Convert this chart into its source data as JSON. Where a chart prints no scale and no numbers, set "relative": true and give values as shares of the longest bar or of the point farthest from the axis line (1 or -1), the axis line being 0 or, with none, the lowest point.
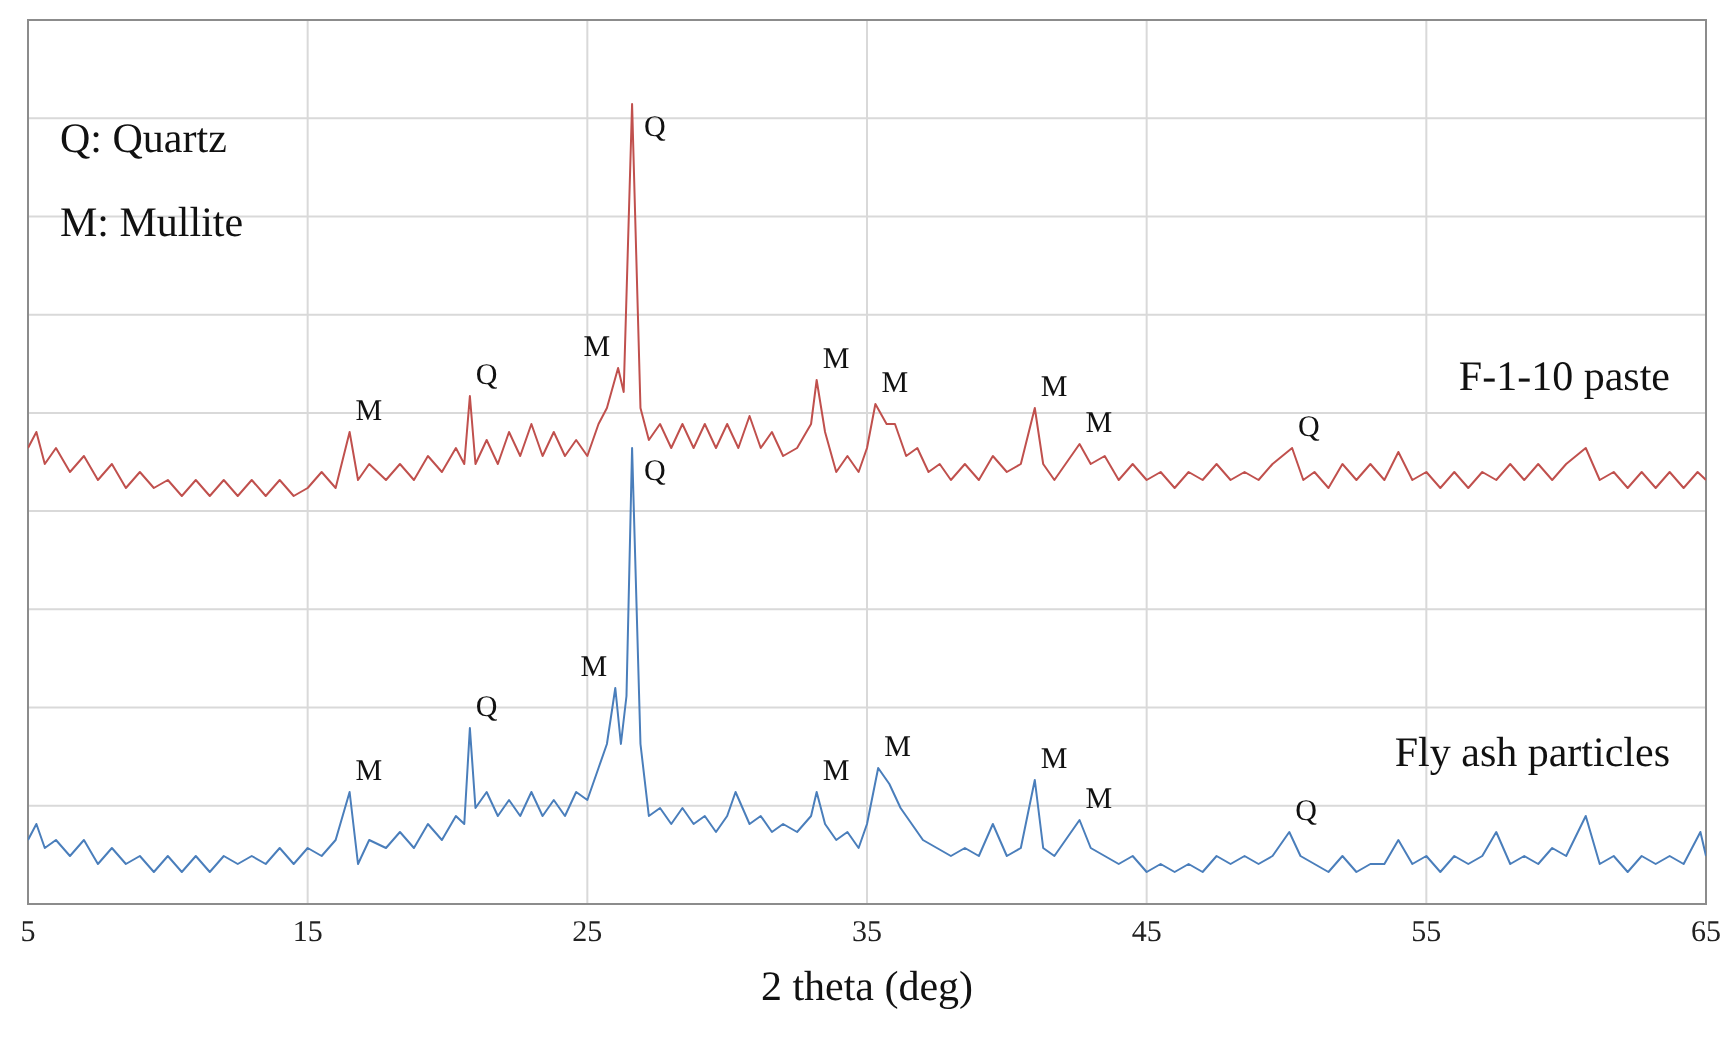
{
  "chart_data": {
    "type": "line",
    "relative": true,
    "xlabel": "2 theta (deg)",
    "xlim": [
      5,
      65
    ],
    "xticks": [
      5,
      15,
      25,
      35,
      45,
      55,
      65
    ],
    "grid": true,
    "marker": "none",
    "line_style": "solid",
    "series": [
      {
        "name": "F-1-10 paste",
        "color": "#c0504d",
        "x": [
          5,
          5.3,
          5.6,
          6,
          6.5,
          7,
          7.5,
          8,
          8.5,
          9,
          9.5,
          10,
          10.5,
          11,
          11.5,
          12,
          12.5,
          13,
          13.5,
          14,
          14.5,
          15,
          15.5,
          16,
          16.5,
          16.8,
          17.2,
          17.8,
          18.3,
          18.8,
          19.3,
          19.8,
          20.3,
          20.6,
          20.8,
          21.0,
          21.4,
          21.8,
          22.2,
          22.6,
          23,
          23.4,
          23.8,
          24.2,
          24.6,
          25,
          25.4,
          25.7,
          26.1,
          26.3,
          26.6,
          26.9,
          27.2,
          27.6,
          28,
          28.4,
          28.8,
          29.2,
          29.6,
          30,
          30.4,
          30.8,
          31.2,
          31.6,
          32,
          32.5,
          33,
          33.2,
          33.5,
          33.9,
          34.3,
          34.7,
          35,
          35.3,
          35.7,
          36,
          36.4,
          36.8,
          37.2,
          37.6,
          38,
          38.5,
          39,
          39.5,
          40,
          40.5,
          41,
          41.3,
          41.7,
          42.1,
          42.6,
          43,
          43.5,
          44,
          44.5,
          45,
          45.5,
          46,
          46.5,
          47,
          47.5,
          48,
          48.5,
          49,
          49.5,
          50.2,
          50.6,
          51,
          51.5,
          52,
          52.5,
          53,
          53.5,
          54,
          54.5,
          55,
          55.5,
          56,
          56.5,
          57,
          57.5,
          58,
          58.5,
          59,
          59.5,
          60,
          60.7,
          61.2,
          61.7,
          62.2,
          62.7,
          63.2,
          63.7,
          64.2,
          64.7,
          65
        ],
        "values": [
          0.57,
          0.59,
          0.55,
          0.57,
          0.54,
          0.56,
          0.53,
          0.55,
          0.52,
          0.54,
          0.52,
          0.53,
          0.51,
          0.53,
          0.51,
          0.53,
          0.51,
          0.53,
          0.51,
          0.53,
          0.51,
          0.52,
          0.54,
          0.52,
          0.59,
          0.53,
          0.55,
          0.53,
          0.55,
          0.53,
          0.56,
          0.54,
          0.57,
          0.55,
          0.635,
          0.55,
          0.58,
          0.55,
          0.59,
          0.56,
          0.6,
          0.56,
          0.59,
          0.56,
          0.58,
          0.56,
          0.6,
          0.62,
          0.67,
          0.64,
          1.0,
          0.62,
          0.58,
          0.6,
          0.57,
          0.6,
          0.57,
          0.6,
          0.57,
          0.6,
          0.57,
          0.61,
          0.57,
          0.59,
          0.56,
          0.57,
          0.6,
          0.655,
          0.59,
          0.54,
          0.56,
          0.54,
          0.57,
          0.625,
          0.6,
          0.6,
          0.56,
          0.57,
          0.54,
          0.55,
          0.53,
          0.55,
          0.53,
          0.56,
          0.54,
          0.55,
          0.62,
          0.55,
          0.53,
          0.55,
          0.575,
          0.55,
          0.56,
          0.53,
          0.55,
          0.53,
          0.54,
          0.52,
          0.54,
          0.53,
          0.55,
          0.53,
          0.54,
          0.53,
          0.55,
          0.57,
          0.53,
          0.54,
          0.52,
          0.55,
          0.53,
          0.55,
          0.53,
          0.565,
          0.53,
          0.54,
          0.52,
          0.54,
          0.52,
          0.54,
          0.53,
          0.55,
          0.53,
          0.55,
          0.53,
          0.55,
          0.57,
          0.53,
          0.54,
          0.52,
          0.54,
          0.52,
          0.54,
          0.52,
          0.54,
          0.53
        ]
      },
      {
        "name": "Fly ash particles",
        "color": "#4a7ebb",
        "x": [
          5,
          5.3,
          5.6,
          6,
          6.5,
          7,
          7.5,
          8,
          8.5,
          9,
          9.5,
          10,
          10.5,
          11,
          11.5,
          12,
          12.5,
          13,
          13.5,
          14,
          14.5,
          15,
          15.5,
          16,
          16.5,
          16.8,
          17.2,
          17.8,
          18.3,
          18.8,
          19.3,
          19.8,
          20.3,
          20.6,
          20.8,
          21.0,
          21.4,
          21.8,
          22.2,
          22.6,
          23,
          23.4,
          23.8,
          24.2,
          24.6,
          25,
          25.4,
          25.7,
          26.0,
          26.2,
          26.4,
          26.6,
          26.9,
          27.2,
          27.6,
          28,
          28.4,
          28.8,
          29.2,
          29.6,
          30,
          30.3,
          30.8,
          31.2,
          31.6,
          32,
          32.5,
          33,
          33.2,
          33.5,
          33.9,
          34.3,
          34.7,
          35,
          35.4,
          35.8,
          36.2,
          36.6,
          37,
          37.5,
          38,
          38.5,
          39,
          39.5,
          40,
          40.5,
          41,
          41.3,
          41.7,
          42.1,
          42.6,
          43,
          43.5,
          44,
          44.5,
          45,
          45.5,
          46,
          46.5,
          47,
          47.5,
          48,
          48.5,
          49,
          49.5,
          50.1,
          50.5,
          51,
          51.5,
          52,
          52.5,
          53,
          53.5,
          54,
          54.5,
          55,
          55.5,
          56,
          56.5,
          57,
          57.5,
          58,
          58.5,
          59,
          59.5,
          60,
          60.7,
          61.2,
          61.7,
          62.2,
          62.7,
          63.2,
          63.7,
          64.2,
          64.8,
          65
        ],
        "values": [
          0.08,
          0.1,
          0.07,
          0.08,
          0.06,
          0.08,
          0.05,
          0.07,
          0.05,
          0.06,
          0.04,
          0.06,
          0.04,
          0.06,
          0.04,
          0.06,
          0.05,
          0.06,
          0.05,
          0.07,
          0.05,
          0.07,
          0.06,
          0.08,
          0.14,
          0.05,
          0.08,
          0.07,
          0.09,
          0.07,
          0.1,
          0.08,
          0.11,
          0.1,
          0.22,
          0.12,
          0.14,
          0.11,
          0.13,
          0.11,
          0.14,
          0.11,
          0.13,
          0.11,
          0.14,
          0.13,
          0.17,
          0.2,
          0.27,
          0.2,
          0.26,
          0.57,
          0.2,
          0.11,
          0.12,
          0.1,
          0.12,
          0.1,
          0.11,
          0.09,
          0.11,
          0.14,
          0.1,
          0.11,
          0.09,
          0.1,
          0.09,
          0.11,
          0.14,
          0.1,
          0.08,
          0.09,
          0.07,
          0.1,
          0.17,
          0.15,
          0.12,
          0.1,
          0.08,
          0.07,
          0.06,
          0.07,
          0.06,
          0.1,
          0.06,
          0.07,
          0.155,
          0.07,
          0.06,
          0.08,
          0.105,
          0.07,
          0.06,
          0.05,
          0.06,
          0.04,
          0.05,
          0.04,
          0.05,
          0.04,
          0.06,
          0.05,
          0.06,
          0.05,
          0.06,
          0.09,
          0.06,
          0.05,
          0.04,
          0.06,
          0.04,
          0.05,
          0.05,
          0.08,
          0.05,
          0.06,
          0.04,
          0.06,
          0.05,
          0.06,
          0.09,
          0.05,
          0.06,
          0.05,
          0.07,
          0.06,
          0.11,
          0.05,
          0.06,
          0.04,
          0.06,
          0.05,
          0.06,
          0.05,
          0.09,
          0.06
        ]
      }
    ],
    "annotations": [
      "Q: Quartz",
      "M: Mullite",
      {
        "text": "M",
        "x": 16.5,
        "y": 0.59
      },
      {
        "text": "Q",
        "x": 20.8,
        "y": 0.635
      },
      {
        "text": "M",
        "x": 26.1,
        "y": 0.67
      },
      {
        "text": "Q",
        "x": 26.6,
        "y": 1.0
      },
      {
        "text": "M",
        "x": 33.2,
        "y": 0.655
      },
      {
        "text": "M",
        "x": 35.3,
        "y": 0.625
      },
      {
        "text": "M",
        "x": 41,
        "y": 0.62
      },
      {
        "text": "M",
        "x": 42.6,
        "y": 0.575
      },
      {
        "text": "Q",
        "x": 50.2,
        "y": 0.57
      },
      {
        "text": "M",
        "x": 16.5,
        "y": 0.14
      },
      {
        "text": "Q",
        "x": 20.8,
        "y": 0.22
      },
      {
        "text": "M",
        "x": 26.0,
        "y": 0.27
      },
      {
        "text": "Q",
        "x": 26.6,
        "y": 0.57
      },
      {
        "text": "M",
        "x": 33.2,
        "y": 0.14
      },
      {
        "text": "M",
        "x": 35.4,
        "y": 0.17
      },
      {
        "text": "M",
        "x": 41,
        "y": 0.155
      },
      {
        "text": "M",
        "x": 42.6,
        "y": 0.105
      },
      {
        "text": "Q",
        "x": 50.1,
        "y": 0.09
      }
    ]
  }
}
